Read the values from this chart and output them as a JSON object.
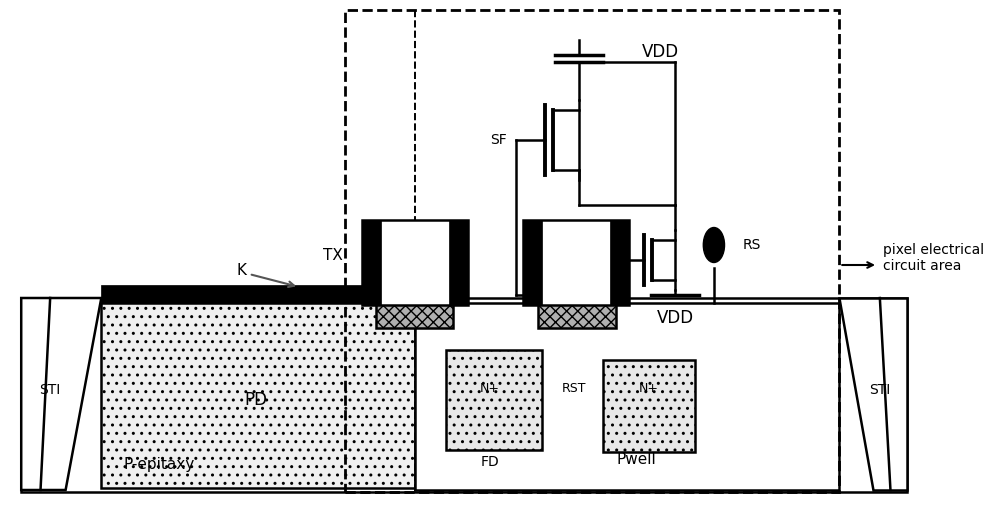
{
  "fig_width": 10.0,
  "fig_height": 5.18,
  "dpi": 100,
  "bg_color": "#ffffff",
  "line_color": "#000000",
  "labels": {
    "STI_left": "STI",
    "STI_right": "STI",
    "PD": "PD",
    "Pepitaxy": "P-epitaxy",
    "FD": "FD",
    "Pwell": "Pwell",
    "N_plus_left": "N+",
    "N_plus_right": "N+",
    "RST": "RST",
    "TX": "TX",
    "K": "K",
    "VDD_top": "VDD",
    "VDD_bottom": "VDD",
    "SF": "SF",
    "RS": "RS",
    "pixel_circuit": "pixel electrical\ncircuit area"
  }
}
